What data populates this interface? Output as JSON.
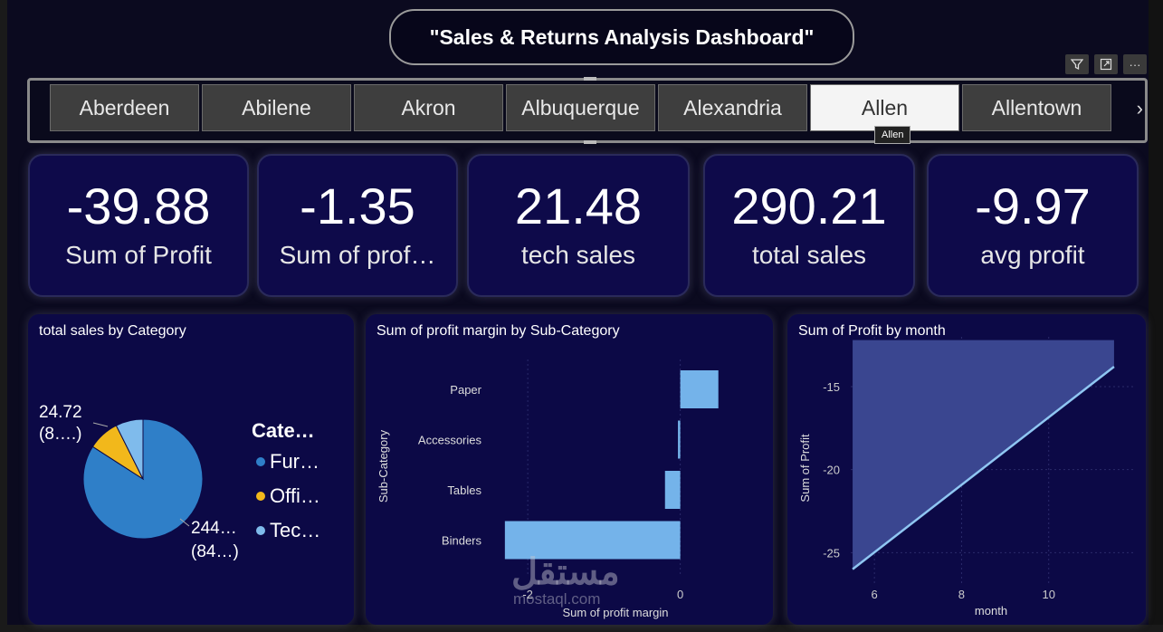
{
  "header": {
    "title": "\"Sales & Returns Analysis Dashboard\""
  },
  "toolbar": {
    "icons": [
      "filter-icon",
      "focus-mode-icon",
      "more-options-icon"
    ],
    "more_label": "···"
  },
  "slicer": {
    "items": [
      "Aberdeen",
      "Abilene",
      "Akron",
      "Albuquerque",
      "Alexandria",
      "Allen",
      "Allentown"
    ],
    "selected": "Allen",
    "tooltip": "Allen",
    "next_arrow": "›"
  },
  "kpis": [
    {
      "value": "-39.88",
      "label": "Sum of Profit"
    },
    {
      "value": "-1.35",
      "label": "Sum of prof…"
    },
    {
      "value": "21.48",
      "label": "tech sales"
    },
    {
      "value": "290.21",
      "label": "total sales"
    },
    {
      "value": "-9.97",
      "label": "avg profit"
    }
  ],
  "colors": {
    "background": "#0b0a1f",
    "card": "#0e0a4a",
    "furniture": "#2f7fc8",
    "office": "#f2b81b",
    "technology": "#7fbbec",
    "bar": "#74b3ea",
    "area_fill": "#3a4690",
    "area_line": "#8fc6f2"
  },
  "chart_data": [
    {
      "type": "pie",
      "title": "total sales by Category",
      "legend_title": "Cate…",
      "legend_placement": "right",
      "categories": [
        "Fur…",
        "Offi…",
        "Tec…"
      ],
      "values": [
        244,
        24.72,
        21.48
      ],
      "data_labels": [
        {
          "category": "Fur…",
          "value": "244…",
          "pct": "(84…)"
        },
        {
          "category": "Offi…",
          "value": "24.72",
          "pct": "(8….)"
        }
      ]
    },
    {
      "type": "bar",
      "orientation": "horizontal",
      "title": "Sum of profit margin by Sub-Category",
      "xlabel": "Sum of profit margin",
      "ylabel": "Sub-Category",
      "categories": [
        "Paper",
        "Accessories",
        "Tables",
        "Binders"
      ],
      "values": [
        0.5,
        -0.03,
        -0.2,
        -2.3
      ],
      "xlim": [
        -2.5,
        0.8
      ],
      "xticks": [
        -2,
        0
      ]
    },
    {
      "type": "area",
      "title": "Sum of Profit by month",
      "xlabel": "month",
      "ylabel": "Sum of Profit",
      "x": [
        5.5,
        11.5
      ],
      "y": [
        -26,
        -13.8
      ],
      "top": -12.2,
      "xlim": [
        5,
        12
      ],
      "ylim": [
        -27,
        -12
      ],
      "xticks": [
        6,
        8,
        10
      ],
      "yticks": [
        -15,
        -20,
        -25
      ],
      "grid": true
    }
  ],
  "watermark": {
    "arabic": "مستقل",
    "latin": "mostaql.com"
  }
}
